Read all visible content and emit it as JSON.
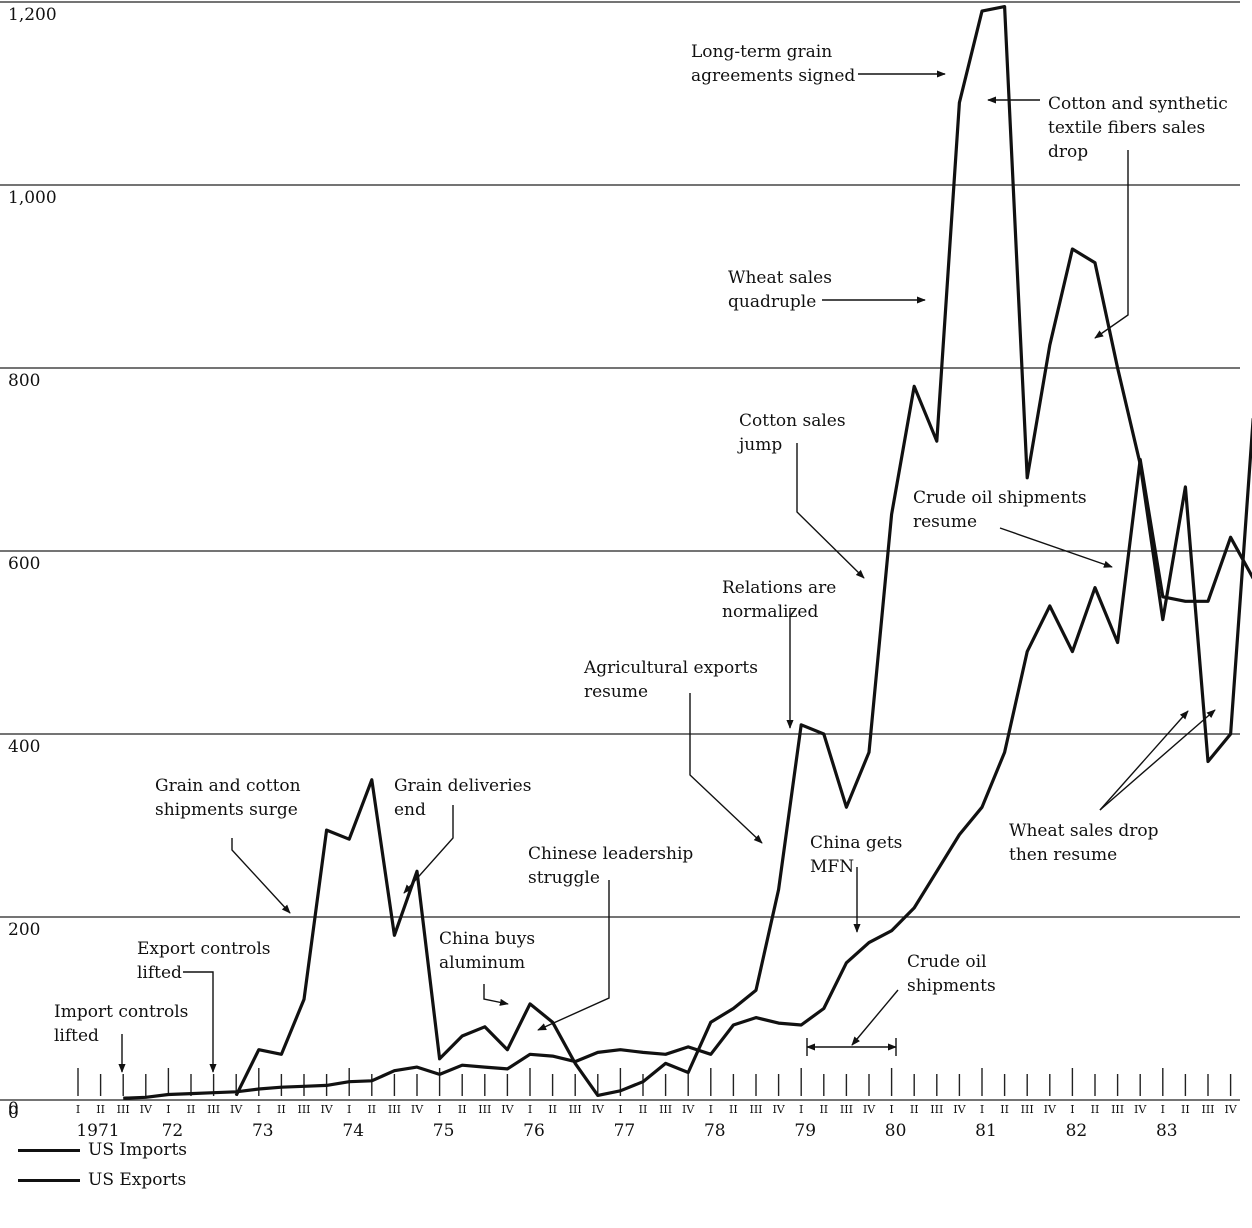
{
  "chart_data": {
    "type": "line",
    "title": "",
    "xlabel": "",
    "ylabel": "",
    "ylim": [
      0,
      1200
    ],
    "y_ticks": [
      "1,200",
      "1,000",
      "800",
      "600",
      "400",
      "200",
      "0"
    ],
    "quarter_labels": [
      "I",
      "II",
      "III",
      "IV"
    ],
    "year_labels": [
      "1971",
      "72",
      "73",
      "74",
      "75",
      "76",
      "77",
      "78",
      "79",
      "80",
      "81",
      "82",
      "83"
    ],
    "x_start": "1971 Q1",
    "grid": "horizontal",
    "legend_position": "bottom-left",
    "series": [
      {
        "name": "US Imports",
        "values": [
          null,
          null,
          2,
          3,
          6,
          7,
          8,
          9,
          12,
          14,
          15,
          16,
          20,
          21,
          32,
          36,
          28,
          38,
          36,
          34,
          50,
          48,
          42,
          52,
          55,
          52,
          50,
          58,
          50,
          82,
          90,
          84,
          82,
          100,
          150,
          172,
          185,
          210,
          250,
          290,
          320,
          380,
          490,
          540,
          490,
          560,
          500,
          700,
          550,
          545,
          545,
          615,
          570
        ]
      },
      {
        "name": "US Exports",
        "values": [
          null,
          null,
          null,
          null,
          null,
          null,
          null,
          5,
          55,
          50,
          110,
          295,
          285,
          350,
          180,
          250,
          45,
          70,
          80,
          55,
          105,
          85,
          40,
          5,
          10,
          20,
          40,
          30,
          85,
          100,
          120,
          230,
          410,
          400,
          320,
          380,
          640,
          780,
          720,
          1090,
          1190,
          1195,
          680,
          825,
          930,
          915,
          800,
          695,
          525,
          670,
          370,
          400,
          745
        ]
      }
    ],
    "annotations": [
      {
        "id": "import-controls",
        "lines": [
          "Import controls",
          "lifted"
        ]
      },
      {
        "id": "export-controls",
        "lines": [
          "Export controls",
          "lifted"
        ]
      },
      {
        "id": "grain-cotton",
        "lines": [
          "Grain and cotton",
          "shipments surge"
        ]
      },
      {
        "id": "grain-deliveries",
        "lines": [
          "Grain deliveries",
          "end"
        ]
      },
      {
        "id": "china-aluminum",
        "lines": [
          "China buys",
          "aluminum"
        ]
      },
      {
        "id": "chinese-leadership",
        "lines": [
          "Chinese leadership",
          "struggle"
        ]
      },
      {
        "id": "agricultural-exports",
        "lines": [
          "Agricultural exports",
          "resume"
        ]
      },
      {
        "id": "relations-normalized",
        "lines": [
          "Relations are",
          "normalized"
        ]
      },
      {
        "id": "cotton-sales",
        "lines": [
          "Cotton sales",
          "jump"
        ]
      },
      {
        "id": "wheat-quadruple",
        "lines": [
          "Wheat sales",
          "quadruple"
        ]
      },
      {
        "id": "long-term-grain",
        "lines": [
          "Long-term grain",
          "agreements signed"
        ]
      },
      {
        "id": "cotton-synthetic",
        "lines": [
          "Cotton and synthetic",
          "textile fibers sales",
          "drop"
        ]
      },
      {
        "id": "crude-oil-resume",
        "lines": [
          "Crude oil shipments",
          "resume"
        ]
      },
      {
        "id": "china-mfn",
        "lines": [
          "China gets",
          "MFN"
        ]
      },
      {
        "id": "crude-oil-shipments",
        "lines": [
          "Crude oil",
          "shipments"
        ]
      },
      {
        "id": "wheat-drop",
        "lines": [
          "Wheat sales drop",
          "then resume"
        ]
      }
    ]
  }
}
